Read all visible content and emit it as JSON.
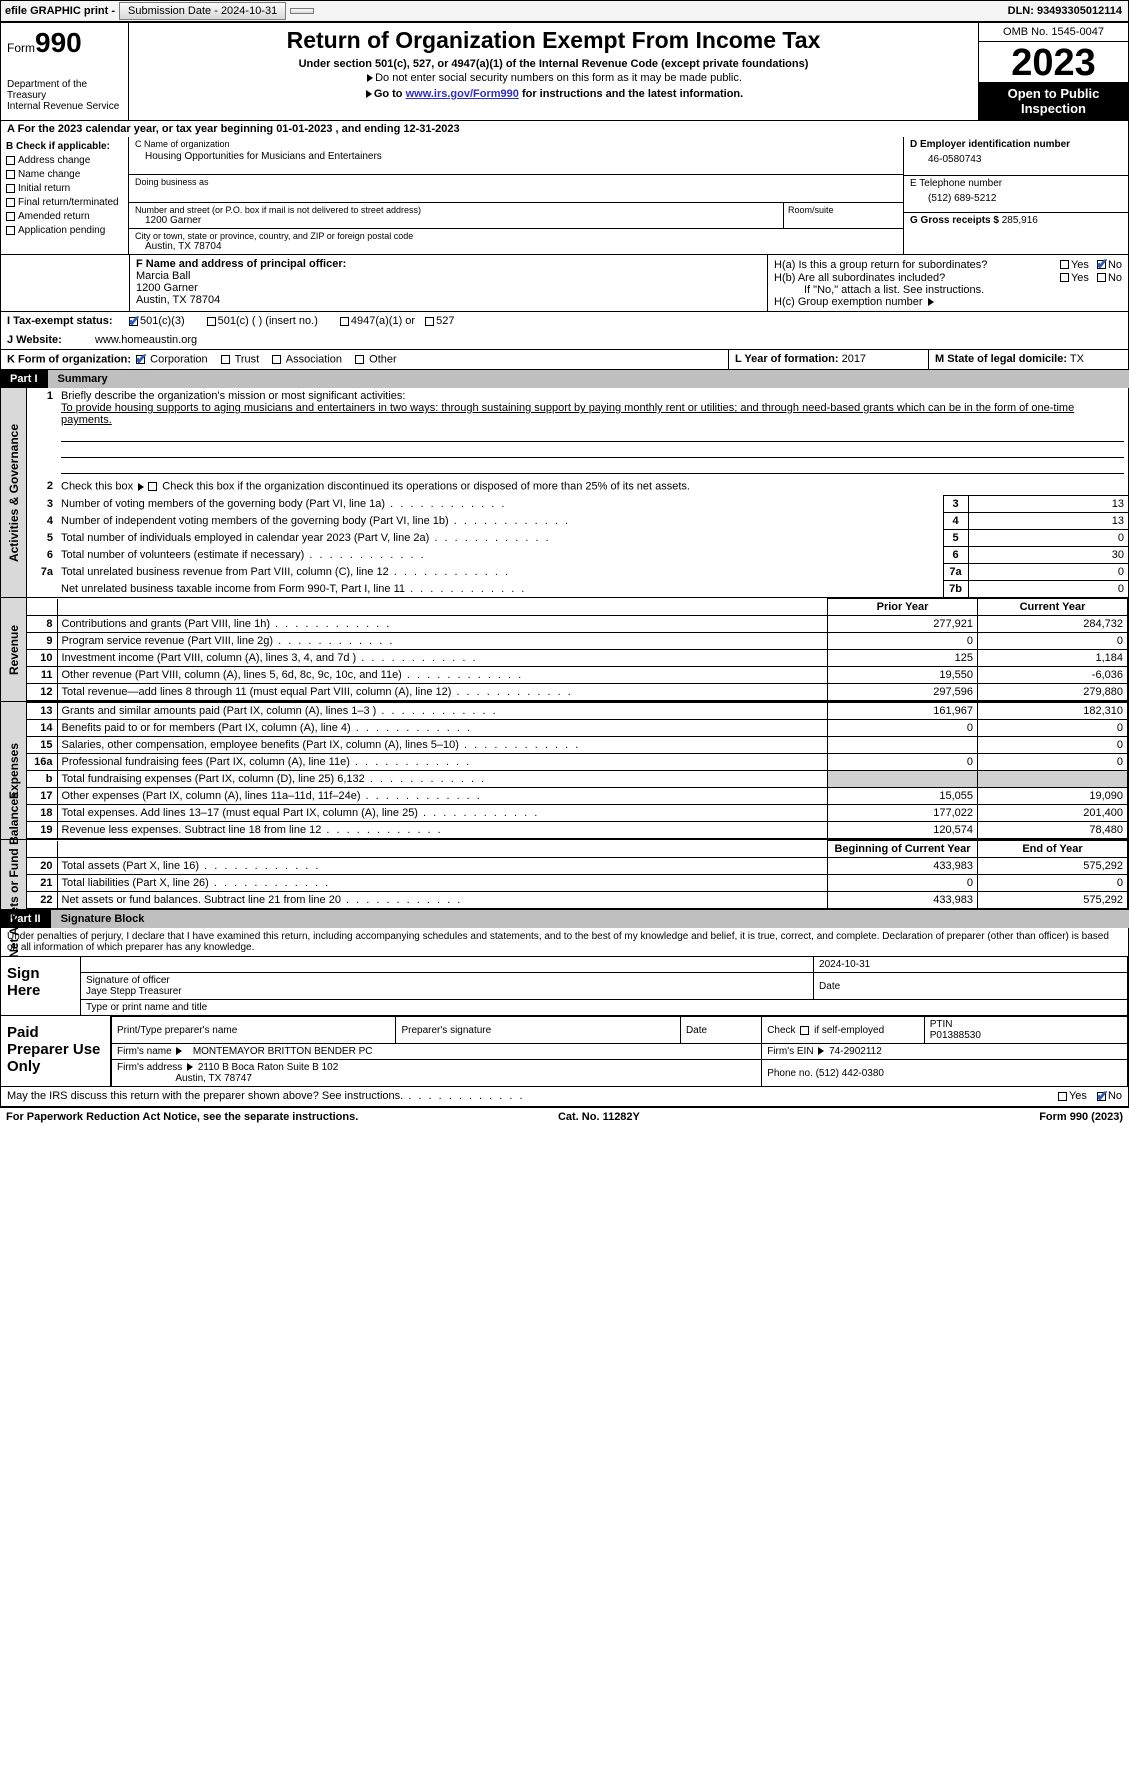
{
  "topbar": {
    "efile": "efile GRAPHIC print -",
    "submission": "Submission Date - 2024-10-31",
    "dln": "DLN: 93493305012114"
  },
  "header": {
    "form_label": "Form",
    "form_no": "990",
    "title": "Return of Organization Exempt From Income Tax",
    "sub1": "Under section 501(c), 527, or 4947(a)(1) of the Internal Revenue Code (except private foundations)",
    "sub2": "Do not enter social security numbers on this form as it may be made public.",
    "sub3_pre": "Go to ",
    "sub3_link": "www.irs.gov/Form990",
    "sub3_post": " for instructions and the latest information.",
    "dept": "Department of the Treasury\nInternal Revenue Service",
    "omb": "OMB No. 1545-0047",
    "year": "2023",
    "open": "Open to Public Inspection"
  },
  "period": "A For the 2023 calendar year, or tax year beginning 01-01-2023    , and ending 12-31-2023",
  "boxB": {
    "title": "B Check if applicable:",
    "opts": [
      "Address change",
      "Name change",
      "Initial return",
      "Final return/terminated",
      "Amended return",
      "Application pending"
    ]
  },
  "boxC": {
    "name_label": "C Name of organization",
    "name": "Housing Opportunities for Musicians and Entertainers",
    "dba_label": "Doing business as",
    "dba": "",
    "street_label": "Number and street (or P.O. box if mail is not delivered to street address)",
    "street": "1200 Garner",
    "room_label": "Room/suite",
    "city_label": "City or town, state or province, country, and ZIP or foreign postal code",
    "city": "Austin, TX  78704"
  },
  "boxD": {
    "label": "D Employer identification number",
    "val": "46-0580743"
  },
  "boxE": {
    "label": "E Telephone number",
    "val": "(512) 689-5212"
  },
  "boxG": {
    "label": "G Gross receipts $",
    "val": "285,916"
  },
  "boxF": {
    "label": "F  Name and address of principal officer:",
    "line1": "Marcia Ball",
    "line2": "1200 Garner",
    "line3": "Austin, TX  78704"
  },
  "boxH": {
    "a": "H(a)  Is this a group return for subordinates?",
    "b": "H(b)  Are all subordinates included?",
    "b_note": "If \"No,\" attach a list. See instructions.",
    "c": "H(c)  Group exemption number",
    "yes": "Yes",
    "no": "No"
  },
  "boxI": {
    "label": "I  Tax-exempt status:",
    "opt1": "501(c)(3)",
    "opt2": "501(c) (  ) (insert no.)",
    "opt3": "4947(a)(1) or",
    "opt4": "527"
  },
  "boxJ": {
    "label": "J  Website:",
    "val": "www.homeaustin.org"
  },
  "boxK": {
    "label": "K Form of organization:",
    "opts": [
      "Corporation",
      "Trust",
      "Association",
      "Other"
    ]
  },
  "boxL": {
    "label": "L Year of formation:",
    "val": "2017"
  },
  "boxM": {
    "label": "M State of legal domicile:",
    "val": "TX"
  },
  "part1": {
    "num": "Part I",
    "title": "Summary"
  },
  "summary": {
    "side1": "Activities & Governance",
    "q1_label": "Briefly describe the organization's mission or most significant activities:",
    "q1_text": "To provide housing supports to aging musicians and entertainers in two ways: through sustaining support by paying monthly rent or utilities; and through need-based grants which can be in the form of one-time payments.",
    "q2": "Check this box       if the organization discontinued its operations or disposed of more than 25% of its net assets.",
    "rows": [
      {
        "n": "3",
        "t": "Number of voting members of the governing body (Part VI, line 1a)",
        "box": "3",
        "v": "13"
      },
      {
        "n": "4",
        "t": "Number of independent voting members of the governing body (Part VI, line 1b)",
        "box": "4",
        "v": "13"
      },
      {
        "n": "5",
        "t": "Total number of individuals employed in calendar year 2023 (Part V, line 2a)",
        "box": "5",
        "v": "0"
      },
      {
        "n": "6",
        "t": "Total number of volunteers (estimate if necessary)",
        "box": "6",
        "v": "30"
      },
      {
        "n": "7a",
        "t": "Total unrelated business revenue from Part VIII, column (C), line 12",
        "box": "7a",
        "v": "0"
      },
      {
        "n": "",
        "t": "Net unrelated business taxable income from Form 990-T, Part I, line 11",
        "box": "7b",
        "v": "0"
      }
    ],
    "side2": "Revenue",
    "h_prior": "Prior Year",
    "h_current": "Current Year",
    "rev_rows": [
      {
        "n": "8",
        "t": "Contributions and grants (Part VIII, line 1h)",
        "p": "277,921",
        "c": "284,732"
      },
      {
        "n": "9",
        "t": "Program service revenue (Part VIII, line 2g)",
        "p": "0",
        "c": "0"
      },
      {
        "n": "10",
        "t": "Investment income (Part VIII, column (A), lines 3, 4, and 7d )",
        "p": "125",
        "c": "1,184"
      },
      {
        "n": "11",
        "t": "Other revenue (Part VIII, column (A), lines 5, 6d, 8c, 9c, 10c, and 11e)",
        "p": "19,550",
        "c": "-6,036"
      },
      {
        "n": "12",
        "t": "Total revenue—add lines 8 through 11 (must equal Part VIII, column (A), line 12)",
        "p": "297,596",
        "c": "279,880"
      }
    ],
    "side3": "Expenses",
    "exp_rows": [
      {
        "n": "13",
        "t": "Grants and similar amounts paid (Part IX, column (A), lines 1–3 )",
        "p": "161,967",
        "c": "182,310"
      },
      {
        "n": "14",
        "t": "Benefits paid to or for members (Part IX, column (A), line 4)",
        "p": "0",
        "c": "0"
      },
      {
        "n": "15",
        "t": "Salaries, other compensation, employee benefits (Part IX, column (A), lines 5–10)",
        "p": "",
        "c": "0"
      },
      {
        "n": "16a",
        "t": "Professional fundraising fees (Part IX, column (A), line 11e)",
        "p": "0",
        "c": "0"
      },
      {
        "n": "b",
        "t": "Total fundraising expenses (Part IX, column (D), line 25) 6,132",
        "p": "SHADE",
        "c": "SHADE"
      },
      {
        "n": "17",
        "t": "Other expenses (Part IX, column (A), lines 11a–11d, 11f–24e)",
        "p": "15,055",
        "c": "19,090"
      },
      {
        "n": "18",
        "t": "Total expenses. Add lines 13–17 (must equal Part IX, column (A), line 25)",
        "p": "177,022",
        "c": "201,400"
      },
      {
        "n": "19",
        "t": "Revenue less expenses. Subtract line 18 from line 12",
        "p": "120,574",
        "c": "78,480"
      }
    ],
    "side4": "Net Assets or Fund Balances",
    "h_begin": "Beginning of Current Year",
    "h_end": "End of Year",
    "na_rows": [
      {
        "n": "20",
        "t": "Total assets (Part X, line 16)",
        "p": "433,983",
        "c": "575,292"
      },
      {
        "n": "21",
        "t": "Total liabilities (Part X, line 26)",
        "p": "0",
        "c": "0"
      },
      {
        "n": "22",
        "t": "Net assets or fund balances. Subtract line 21 from line 20",
        "p": "433,983",
        "c": "575,292"
      }
    ]
  },
  "part2": {
    "num": "Part II",
    "title": "Signature Block"
  },
  "sig": {
    "decl": "Under penalties of perjury, I declare that I have examined this return, including accompanying schedules and statements, and to the best of my knowledge and belief, it is true, correct, and complete. Declaration of preparer (other than officer) is based on all information of which preparer has any knowledge.",
    "sign_here": "Sign Here",
    "sig_officer": "Signature of officer",
    "officer": "Jaye Stepp  Treasurer",
    "type_name": "Type or print name and title",
    "date": "2024-10-31",
    "date_label": "Date",
    "paid": "Paid Preparer Use Only",
    "prep_name_label": "Print/Type preparer's name",
    "prep_sig_label": "Preparer's signature",
    "check_self": "Check        if self-employed",
    "ptin_label": "PTIN",
    "ptin": "P01388530",
    "firm_name_label": "Firm's name",
    "firm_name": "MONTEMAYOR BRITTON BENDER PC",
    "firm_ein_label": "Firm's EIN",
    "firm_ein": "74-2902112",
    "firm_addr_label": "Firm's address",
    "firm_addr1": "2110 B Boca Raton Suite B 102",
    "firm_addr2": "Austin, TX  78747",
    "phone_label": "Phone no.",
    "phone": "(512) 442-0380",
    "discuss": "May the IRS discuss this return with the preparer shown above? See instructions."
  },
  "footer": {
    "left": "For Paperwork Reduction Act Notice, see the separate instructions.",
    "mid": "Cat. No. 11282Y",
    "right": "Form 990 (2023)"
  },
  "colors": {
    "link": "#3030c0",
    "check": "#2b5fb8",
    "shade": "#d0d0d0",
    "side": "#d9d9d9"
  }
}
